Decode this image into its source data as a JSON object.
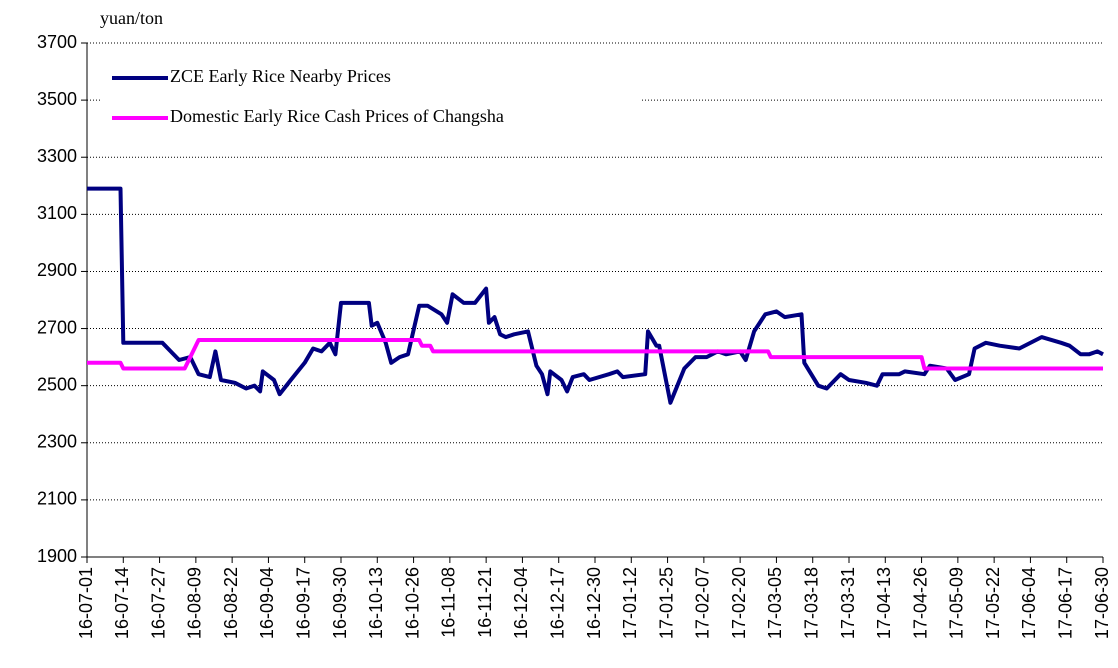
{
  "chart_data": {
    "type": "line",
    "y_label": "yuan/ton",
    "ylim": [
      1900,
      3700
    ],
    "yticks": [
      1900,
      2100,
      2300,
      2500,
      2700,
      2900,
      3100,
      3300,
      3500,
      3700
    ],
    "xlim": [
      "16-07-01",
      "17-06-30"
    ],
    "xticks": [
      "16-07-01",
      "16-07-14",
      "16-07-27",
      "16-08-09",
      "16-08-22",
      "16-09-04",
      "16-09-17",
      "16-09-30",
      "16-10-13",
      "16-10-26",
      "16-11-08",
      "16-11-21",
      "16-12-04",
      "16-12-17",
      "16-12-30",
      "17-01-12",
      "17-01-25",
      "17-02-07",
      "17-02-20",
      "17-03-05",
      "17-03-18",
      "17-03-31",
      "17-04-13",
      "17-04-26",
      "17-05-09",
      "17-05-22",
      "17-06-04",
      "17-06-17",
      "17-06-30"
    ],
    "grid": true,
    "legend": "upper left",
    "series": [
      {
        "name": "ZCE Early Rice Nearby Prices",
        "color": "#000080",
        "x": [
          "16-07-01",
          "16-07-13",
          "16-07-14",
          "16-07-28",
          "16-07-31",
          "16-08-03",
          "16-08-07",
          "16-08-10",
          "16-08-14",
          "16-08-16",
          "16-08-18",
          "16-08-23",
          "16-08-27",
          "16-08-30",
          "16-09-01",
          "16-09-02",
          "16-09-06",
          "16-09-08",
          "16-09-12",
          "16-09-17",
          "16-09-20",
          "16-09-23",
          "16-09-26",
          "16-09-28",
          "16-09-30",
          "16-10-10",
          "16-10-11",
          "16-10-13",
          "16-10-16",
          "16-10-18",
          "16-10-21",
          "16-10-24",
          "16-10-28",
          "16-10-31",
          "16-11-05",
          "16-11-07",
          "16-11-09",
          "16-11-13",
          "16-11-17",
          "16-11-21",
          "16-11-22",
          "16-11-24",
          "16-11-26",
          "16-11-28",
          "16-12-01",
          "16-12-06",
          "16-12-09",
          "16-12-11",
          "16-12-13",
          "16-12-14",
          "16-12-18",
          "16-12-20",
          "16-12-22",
          "16-12-26",
          "16-12-28",
          "17-01-04",
          "17-01-07",
          "17-01-09",
          "17-01-17",
          "17-01-18",
          "17-01-21",
          "17-01-22",
          "17-01-26",
          "17-01-31",
          "17-02-04",
          "17-02-08",
          "17-02-12",
          "17-02-15",
          "17-02-20",
          "17-02-22",
          "17-02-25",
          "17-03-01",
          "17-03-05",
          "17-03-08",
          "17-03-14",
          "17-03-15",
          "17-03-20",
          "17-03-23",
          "17-03-28",
          "17-03-31",
          "17-04-06",
          "17-04-10",
          "17-04-12",
          "17-04-18",
          "17-04-20",
          "17-04-27",
          "17-04-29",
          "17-05-05",
          "17-05-08",
          "17-05-13",
          "17-05-15",
          "17-05-19",
          "17-05-24",
          "17-05-31",
          "17-06-08",
          "17-06-15",
          "17-06-18",
          "17-06-22",
          "17-06-25",
          "17-06-28",
          "17-06-30"
        ],
        "values": [
          3190,
          3190,
          2650,
          2650,
          2620,
          2590,
          2600,
          2540,
          2530,
          2620,
          2520,
          2510,
          2490,
          2500,
          2480,
          2550,
          2520,
          2470,
          2520,
          2580,
          2630,
          2620,
          2650,
          2610,
          2790,
          2790,
          2710,
          2720,
          2650,
          2580,
          2600,
          2610,
          2780,
          2780,
          2750,
          2720,
          2820,
          2790,
          2790,
          2840,
          2720,
          2740,
          2680,
          2670,
          2680,
          2690,
          2570,
          2540,
          2470,
          2550,
          2520,
          2480,
          2530,
          2540,
          2520,
          2540,
          2550,
          2530,
          2540,
          2690,
          2640,
          2640,
          2440,
          2560,
          2600,
          2600,
          2620,
          2610,
          2620,
          2590,
          2690,
          2750,
          2760,
          2740,
          2750,
          2580,
          2500,
          2490,
          2540,
          2520,
          2510,
          2500,
          2540,
          2540,
          2550,
          2540,
          2570,
          2560,
          2520,
          2540,
          2630,
          2650,
          2640,
          2630,
          2670,
          2650,
          2640,
          2610,
          2610,
          2620,
          2610
        ]
      },
      {
        "name": "Domestic Early Rice Cash Prices of Changsha",
        "color": "#ff00ff",
        "x": [
          "16-07-01",
          "16-07-13",
          "16-07-14",
          "16-08-05",
          "16-08-10",
          "16-10-28",
          "16-10-29",
          "16-11-01",
          "16-11-02",
          "17-03-02",
          "17-03-03",
          "17-04-26",
          "17-04-27",
          "17-06-30"
        ],
        "values": [
          2580,
          2580,
          2560,
          2560,
          2660,
          2660,
          2640,
          2640,
          2620,
          2620,
          2600,
          2600,
          2560,
          2560
        ]
      }
    ]
  }
}
